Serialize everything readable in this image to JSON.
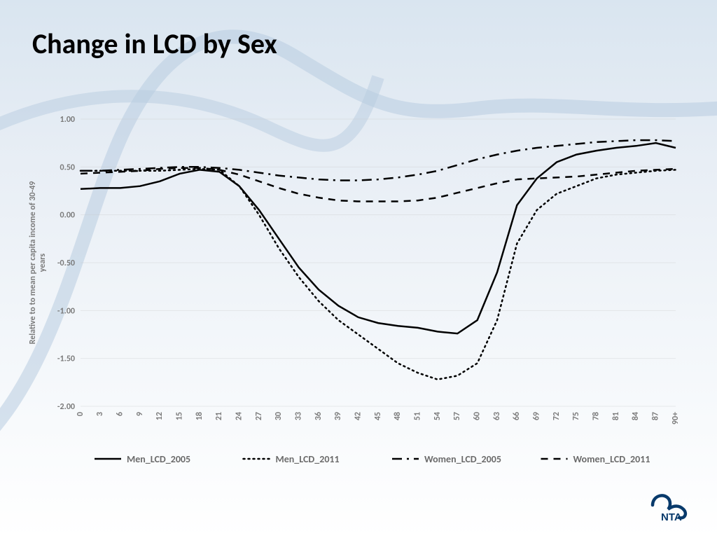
{
  "title": "Change in LCD by Sex",
  "chart": {
    "type": "line",
    "background_color": "transparent",
    "grid_color": "#c9c9c9",
    "grid_opacity": 0.35,
    "axis_text_color": "#7a7a7a",
    "y_axis_label": "Relative to to mean per capita income of 30-49 years",
    "y_axis_label_fontsize": 12,
    "ylim": [
      -2.0,
      1.0
    ],
    "ytick_step": 0.5,
    "yticks": [
      "1.00",
      "0.50",
      "0.00",
      "-0.50",
      "-1.00",
      "-1.50",
      "-2.00"
    ],
    "x_categories": [
      "0",
      "3",
      "6",
      "9",
      "12",
      "15",
      "18",
      "21",
      "24",
      "27",
      "30",
      "33",
      "36",
      "39",
      "42",
      "45",
      "48",
      "51",
      "54",
      "57",
      "60",
      "63",
      "66",
      "69",
      "72",
      "75",
      "78",
      "81",
      "84",
      "87",
      "90+"
    ],
    "x_tick_rotation": -90,
    "legend_position": "bottom",
    "legend_fontsize": 14,
    "line_width": 2.5,
    "series": [
      {
        "key": "men_2005",
        "label": "Men_LCD_2005",
        "color": "#000000",
        "dash": "solid",
        "values": [
          0.27,
          0.28,
          0.28,
          0.3,
          0.35,
          0.43,
          0.47,
          0.45,
          0.3,
          0.05,
          -0.25,
          -0.55,
          -0.78,
          -0.95,
          -1.07,
          -1.13,
          -1.16,
          -1.18,
          -1.22,
          -1.24,
          -1.1,
          -0.6,
          0.1,
          0.38,
          0.55,
          0.63,
          0.67,
          0.7,
          0.72,
          0.75,
          0.7
        ]
      },
      {
        "key": "men_2011",
        "label": "Men_LCD_2011",
        "color": "#000000",
        "dash": "dot",
        "values": [
          0.46,
          0.46,
          0.46,
          0.46,
          0.46,
          0.47,
          0.48,
          0.47,
          0.3,
          0.0,
          -0.35,
          -0.65,
          -0.9,
          -1.1,
          -1.25,
          -1.4,
          -1.55,
          -1.65,
          -1.72,
          -1.68,
          -1.55,
          -1.1,
          -0.3,
          0.05,
          0.22,
          0.3,
          0.38,
          0.42,
          0.44,
          0.46,
          0.47
        ]
      },
      {
        "key": "women_2005",
        "label": "Women_LCD_2005",
        "color": "#000000",
        "dash": "dash-dot",
        "values": [
          0.46,
          0.46,
          0.47,
          0.48,
          0.49,
          0.5,
          0.5,
          0.49,
          0.47,
          0.44,
          0.41,
          0.39,
          0.37,
          0.36,
          0.36,
          0.37,
          0.39,
          0.42,
          0.46,
          0.52,
          0.58,
          0.63,
          0.67,
          0.7,
          0.72,
          0.74,
          0.76,
          0.77,
          0.78,
          0.78,
          0.77
        ]
      },
      {
        "key": "women_2011",
        "label": "Women_LCD_2011",
        "color": "#000000",
        "dash": "dash",
        "values": [
          0.43,
          0.44,
          0.45,
          0.46,
          0.48,
          0.49,
          0.49,
          0.47,
          0.42,
          0.35,
          0.28,
          0.22,
          0.18,
          0.15,
          0.14,
          0.14,
          0.14,
          0.15,
          0.18,
          0.23,
          0.28,
          0.33,
          0.37,
          0.38,
          0.39,
          0.4,
          0.42,
          0.44,
          0.46,
          0.47,
          0.48
        ]
      }
    ]
  },
  "logo_text": "NTA",
  "logo_color": "#083a6b"
}
